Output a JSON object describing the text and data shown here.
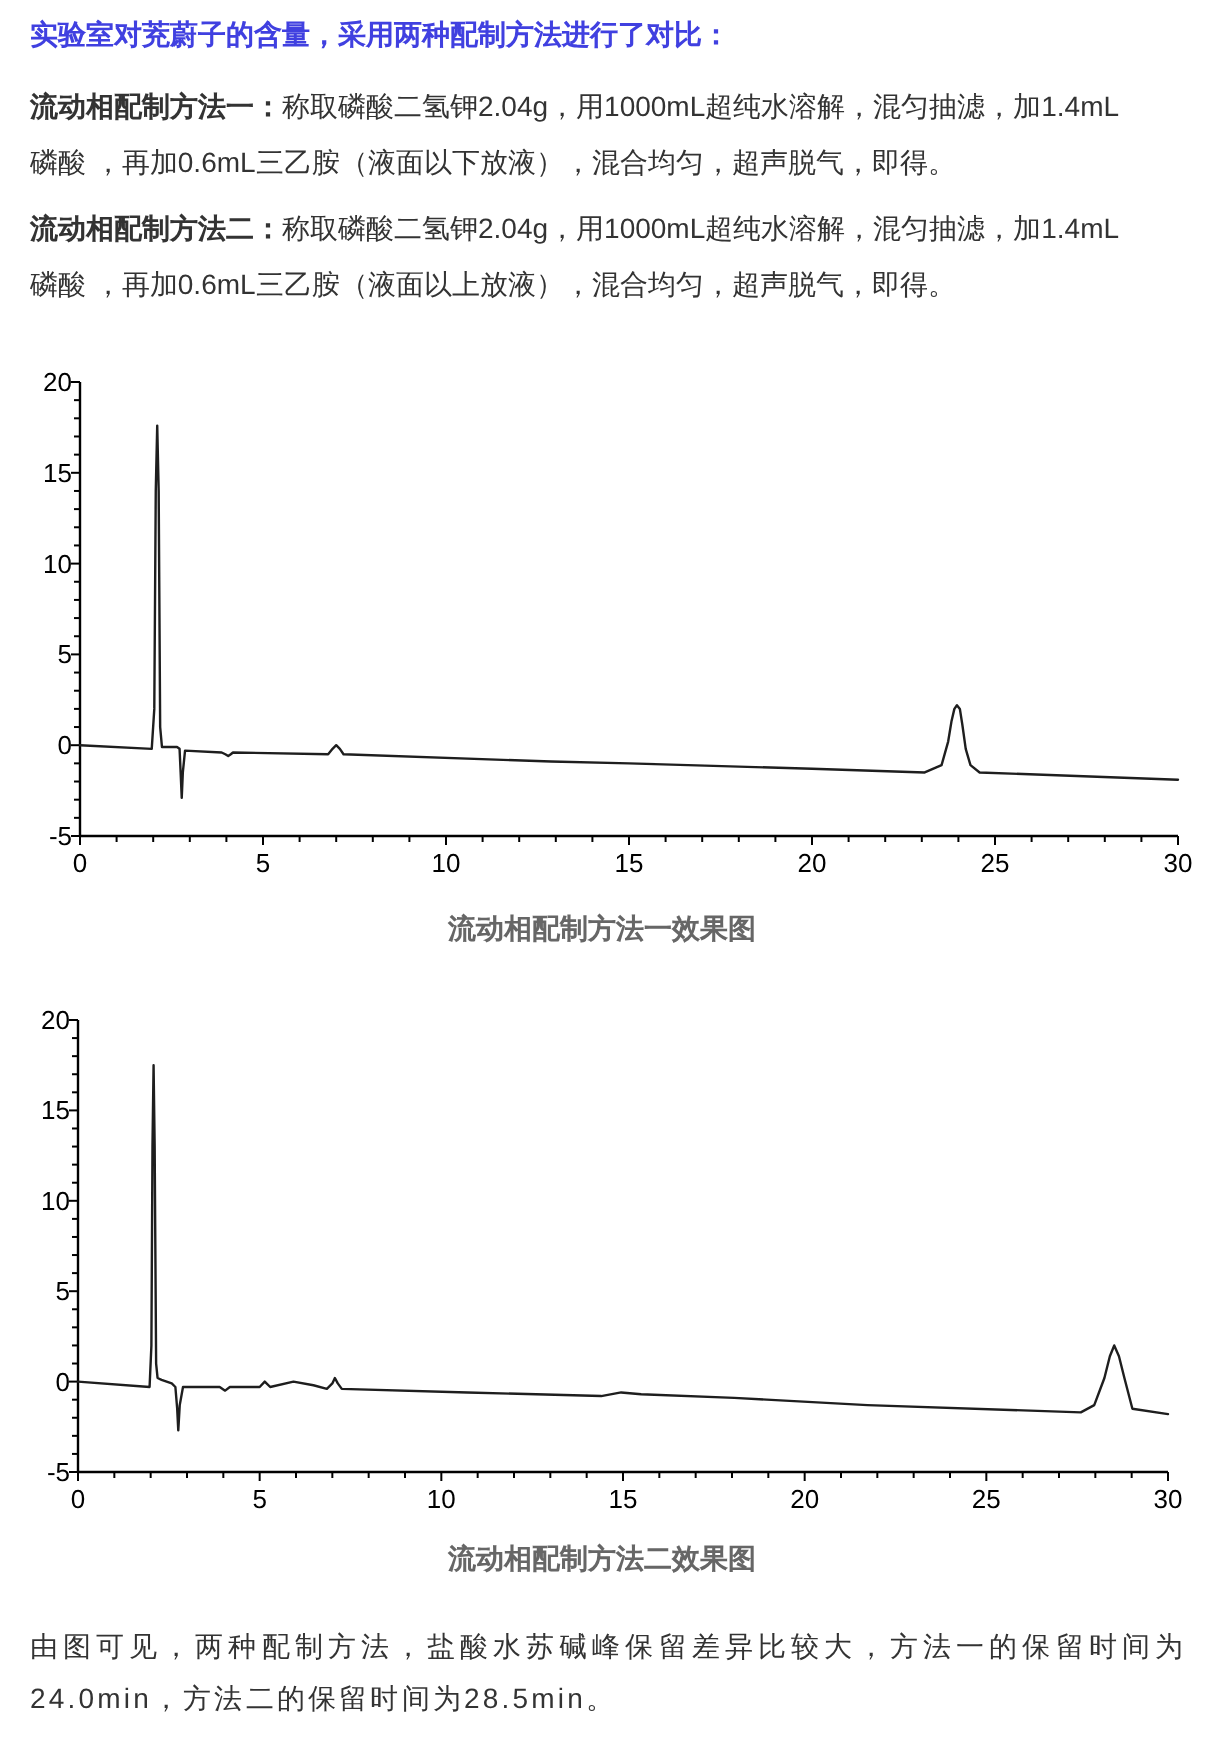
{
  "chart_data": [
    {
      "type": "line",
      "title": "流动相配制方法一效果图",
      "annotations": [
        "实验室对茺蔚子的含量，采用两种配制方法进行了对比：",
        "**流动相配制方法一：**称取磷酸二氢钾2.04g，用1000mL超纯水溶解，混匀抽滤，加1.4mL磷酸 ，再加0.6mL三乙胺（液面以下放液），混合均匀，超声脱气，即得。",
        "**流动相配制方法二：**称取磷酸二氢钾2.04g，用1000mL超纯水溶解，混匀抽滤，加1.4mL磷酸 ，再加0.6mL三乙胺（液面以上放液），混合均匀，超声脱气，即得。"
      ],
      "x": [
        0,
        1.96,
        2.03,
        2.07,
        2.11,
        2.15,
        2.19,
        2.24,
        2.4,
        2.65,
        2.72,
        2.75,
        2.78,
        2.81,
        2.87,
        3.87,
        3.97,
        4.05,
        4.12,
        4.18,
        6.78,
        6.9,
        7.0,
        7.1,
        7.2,
        12.87,
        15.0,
        20.0,
        23.08,
        23.54,
        23.72,
        23.81,
        23.89,
        23.96,
        24.04,
        24.11,
        24.2,
        24.33,
        24.58,
        30
      ],
      "values": [
        0,
        -0.2,
        2,
        14,
        17.6,
        14,
        1,
        -0.1,
        -0.1,
        -0.1,
        -0.2,
        -1.5,
        -2.9,
        -1.5,
        -0.3,
        -0.4,
        -0.5,
        -0.6,
        -0.5,
        -0.4,
        -0.5,
        -0.2,
        0.0,
        -0.2,
        -0.5,
        -0.9,
        -1.0,
        -1.3,
        -1.5,
        -1.1,
        0.2,
        1.3,
        2.0,
        2.2,
        2.0,
        1.1,
        -0.2,
        -1.1,
        -1.5,
        -1.9
      ],
      "color": "#1e1e1e",
      "xlim": [
        0,
        30
      ],
      "ylim": [
        -5,
        20
      ],
      "xticks": [
        0,
        {
          "value": 1,
          "label": null
        },
        {
          "value": 2,
          "label": null
        },
        {
          "value": 3,
          "label": null
        },
        {
          "value": 4,
          "label": null
        },
        5,
        {
          "value": 6,
          "label": null
        },
        {
          "value": 7,
          "label": null
        },
        {
          "value": 8,
          "label": null
        },
        {
          "value": 9,
          "label": null
        },
        10,
        {
          "value": 11,
          "label": null
        },
        {
          "value": 12,
          "label": null
        },
        {
          "value": 13,
          "label": null
        },
        {
          "value": 14,
          "label": null
        },
        15,
        {
          "value": 16,
          "label": null
        },
        {
          "value": 17,
          "label": null
        },
        {
          "value": 18,
          "label": null
        },
        {
          "value": 19,
          "label": null
        },
        20,
        {
          "value": 21,
          "label": null
        },
        {
          "value": 22,
          "label": null
        },
        {
          "value": 23,
          "label": null
        },
        {
          "value": 24,
          "label": null
        },
        25,
        {
          "value": 26,
          "label": null
        },
        {
          "value": 27,
          "label": null
        },
        {
          "value": 28,
          "label": null
        },
        {
          "value": 29,
          "label": null
        },
        30
      ],
      "yticks": [
        -5,
        {
          "value": -4,
          "label": null
        },
        {
          "value": -3,
          "label": null
        },
        {
          "value": -2,
          "label": null
        },
        {
          "value": -1,
          "label": null
        },
        0,
        {
          "value": 1,
          "label": null
        },
        {
          "value": 2,
          "label": null
        },
        {
          "value": 3,
          "label": null
        },
        {
          "value": 4,
          "label": null
        },
        5,
        {
          "value": 6,
          "label": null
        },
        {
          "value": 7,
          "label": null
        },
        {
          "value": 8,
          "label": null
        },
        {
          "value": 9,
          "label": null
        },
        10,
        {
          "value": 11,
          "label": null
        },
        {
          "value": 12,
          "label": null
        },
        {
          "value": 13,
          "label": null
        },
        {
          "value": 14,
          "label": null
        },
        15,
        {
          "value": 16,
          "label": null
        },
        {
          "value": 17,
          "label": null
        },
        {
          "value": 18,
          "label": null
        },
        {
          "value": 19,
          "label": null
        },
        20
      ]
    },
    {
      "type": "line",
      "title": "流动相配制方法二效果图",
      "annotations": [
        "由图可见，两种配制方法，盐酸水苏碱峰保留差异比较大，方法一的保留时间为24.0min，方法二的保留时间为28.5min。"
      ],
      "x": [
        0,
        1.97,
        2.02,
        2.05,
        2.08,
        2.11,
        2.15,
        2.19,
        2.3,
        2.58,
        2.68,
        2.73,
        2.76,
        2.8,
        2.89,
        3.9,
        4.05,
        4.18,
        5.0,
        5.14,
        5.29,
        5.93,
        6.48,
        6.85,
        7.0,
        7.07,
        7.15,
        7.26,
        10.72,
        14.4,
        14.95,
        15.5,
        18.06,
        21.73,
        27.6,
        27.97,
        28.25,
        28.4,
        28.52,
        28.65,
        28.8,
        29.02,
        30
      ],
      "values": [
        0,
        -0.3,
        2,
        13,
        17.5,
        13,
        1,
        0.2,
        0.1,
        -0.1,
        -0.3,
        -1.5,
        -2.7,
        -1.3,
        -0.3,
        -0.3,
        -0.5,
        -0.3,
        -0.3,
        0.0,
        -0.3,
        0.0,
        -0.2,
        -0.4,
        -0.1,
        0.2,
        -0.1,
        -0.4,
        -0.6,
        -0.8,
        -0.6,
        -0.7,
        -0.9,
        -1.3,
        -1.7,
        -1.3,
        0.2,
        1.4,
        2.0,
        1.4,
        0.2,
        -1.5,
        -1.8
      ],
      "color": "#1e1e1e",
      "xlim": [
        0,
        30
      ],
      "ylim": [
        -5,
        20
      ],
      "xticks": [
        0,
        {
          "value": 1,
          "label": null
        },
        {
          "value": 2,
          "label": null
        },
        {
          "value": 3,
          "label": null
        },
        {
          "value": 4,
          "label": null
        },
        5,
        {
          "value": 6,
          "label": null
        },
        {
          "value": 7,
          "label": null
        },
        {
          "value": 8,
          "label": null
        },
        {
          "value": 9,
          "label": null
        },
        10,
        {
          "value": 11,
          "label": null
        },
        {
          "value": 12,
          "label": null
        },
        {
          "value": 13,
          "label": null
        },
        {
          "value": 14,
          "label": null
        },
        15,
        {
          "value": 16,
          "label": null
        },
        {
          "value": 17,
          "label": null
        },
        {
          "value": 18,
          "label": null
        },
        {
          "value": 19,
          "label": null
        },
        20,
        {
          "value": 21,
          "label": null
        },
        {
          "value": 22,
          "label": null
        },
        {
          "value": 23,
          "label": null
        },
        {
          "value": 24,
          "label": null
        },
        25,
        {
          "value": 26,
          "label": null
        },
        {
          "value": 27,
          "label": null
        },
        {
          "value": 28,
          "label": null
        },
        {
          "value": 29,
          "label": null
        },
        30
      ],
      "yticks": [
        -5,
        {
          "value": -4,
          "label": null
        },
        {
          "value": -3,
          "label": null
        },
        {
          "value": -2,
          "label": null
        },
        {
          "value": -1,
          "label": null
        },
        0,
        {
          "value": 1,
          "label": null
        },
        {
          "value": 2,
          "label": null
        },
        {
          "value": 3,
          "label": null
        },
        {
          "value": 4,
          "label": null
        },
        5,
        {
          "value": 6,
          "label": null
        },
        {
          "value": 7,
          "label": null
        },
        {
          "value": 8,
          "label": null
        },
        {
          "value": 9,
          "label": null
        },
        10,
        {
          "value": 11,
          "label": null
        },
        {
          "value": 12,
          "label": null
        },
        {
          "value": 13,
          "label": null
        },
        {
          "value": 14,
          "label": null
        },
        15,
        {
          "value": 16,
          "label": null
        },
        {
          "value": 17,
          "label": null
        },
        {
          "value": 18,
          "label": null
        },
        {
          "value": 19,
          "label": null
        },
        20
      ]
    }
  ]
}
